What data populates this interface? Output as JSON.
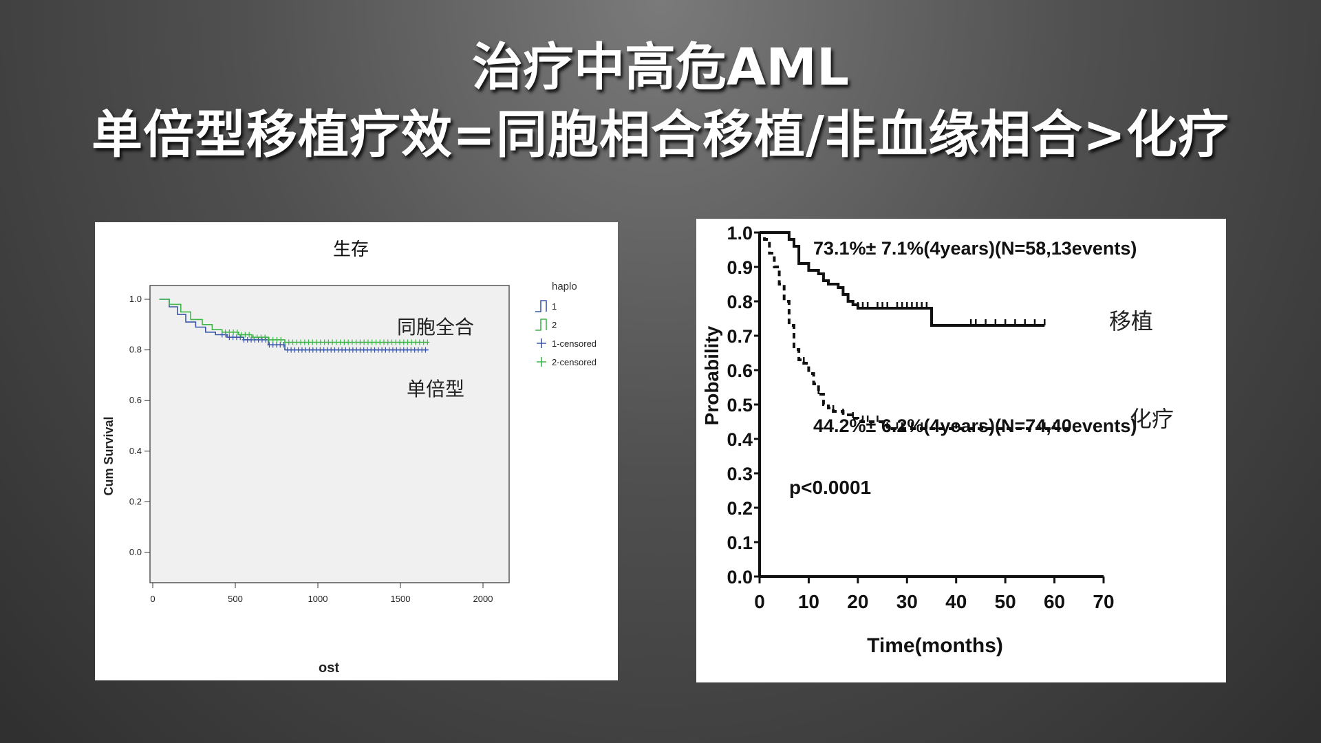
{
  "title_line1": "治疗中高危AML",
  "title_line2": "单倍型移植疗效=同胞相合移植/非血缘相合>化疗",
  "chart_data": [
    {
      "type": "line",
      "title": "生存",
      "xlabel": "ost",
      "ylabel": "Cum Survival",
      "xlim": [
        0,
        2100
      ],
      "ylim": [
        0,
        1.0
      ],
      "xticks": [
        "0",
        "500",
        "1000",
        "1500",
        "2000"
      ],
      "yticks": [
        "0.0",
        "0.2",
        "0.4",
        "0.6",
        "0.8",
        "1.0"
      ],
      "legend": {
        "title": "haplo",
        "placement": "right",
        "entries": [
          "1",
          "2",
          "1-censored",
          "2-censored"
        ]
      },
      "annotations": [
        "同胞全合",
        "单倍型"
      ],
      "colors": {
        "series1": "#3a56a8",
        "series2": "#3fb54a"
      },
      "series": [
        {
          "name": "1",
          "x": [
            40,
            100,
            150,
            200,
            260,
            320,
            380,
            450,
            550,
            700,
            800,
            1000,
            1670
          ],
          "y": [
            1.0,
            0.97,
            0.94,
            0.91,
            0.89,
            0.87,
            0.86,
            0.85,
            0.84,
            0.82,
            0.8,
            0.8,
            0.8
          ]
        },
        {
          "name": "2",
          "x": [
            40,
            100,
            170,
            230,
            300,
            360,
            420,
            520,
            600,
            700,
            800,
            1000,
            1670
          ],
          "y": [
            1.0,
            0.98,
            0.95,
            0.92,
            0.9,
            0.88,
            0.87,
            0.86,
            0.85,
            0.84,
            0.83,
            0.83,
            0.83
          ]
        }
      ]
    },
    {
      "type": "line",
      "title": "",
      "xlabel": "Time(months)",
      "ylabel": "Probability",
      "xlim": [
        0,
        70
      ],
      "ylim": [
        0,
        1.0
      ],
      "xticks": [
        "0",
        "10",
        "20",
        "30",
        "40",
        "50",
        "60",
        "70"
      ],
      "yticks": [
        "0.0",
        "0.1",
        "0.2",
        "0.3",
        "0.4",
        "0.5",
        "0.6",
        "0.7",
        "0.8",
        "0.9",
        "1.0"
      ],
      "annotations": {
        "top_stat": "73.1%± 7.1%(4years)(N=58,13events)",
        "bottom_stat": "44.2%± 6.2%(4years)(N=74,40events)",
        "p_value": "p<0.0001",
        "label_transplant": "移植",
        "label_chemo": "化疗"
      },
      "series": [
        {
          "style": "solid",
          "x": [
            0,
            3,
            6,
            7,
            8,
            10,
            12,
            13,
            14,
            16,
            17,
            18,
            19,
            20,
            25,
            30,
            34,
            35,
            40,
            50,
            58
          ],
          "y": [
            1.0,
            1.0,
            0.98,
            0.96,
            0.91,
            0.89,
            0.88,
            0.86,
            0.85,
            0.84,
            0.82,
            0.8,
            0.79,
            0.78,
            0.78,
            0.78,
            0.78,
            0.73,
            0.73,
            0.73,
            0.73
          ]
        },
        {
          "style": "dashed",
          "x": [
            0,
            1,
            2,
            3,
            4,
            5,
            6,
            7,
            8,
            9,
            10,
            11,
            12,
            13,
            14,
            15,
            17,
            19,
            20,
            22,
            24,
            25,
            26,
            30,
            40,
            50,
            63
          ],
          "y": [
            1.0,
            0.98,
            0.94,
            0.9,
            0.85,
            0.8,
            0.73,
            0.66,
            0.63,
            0.62,
            0.59,
            0.56,
            0.53,
            0.5,
            0.49,
            0.48,
            0.47,
            0.46,
            0.45,
            0.45,
            0.45,
            0.44,
            0.43,
            0.43,
            0.43,
            0.43,
            0.43
          ]
        }
      ]
    }
  ]
}
